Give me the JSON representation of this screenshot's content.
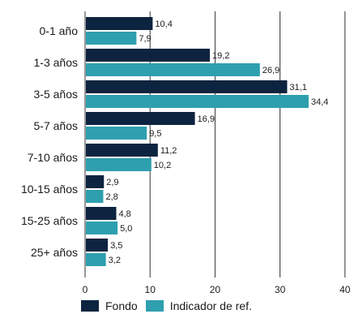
{
  "chart_data": {
    "type": "bar",
    "orientation": "horizontal",
    "categories": [
      "0-1 año",
      "1-3 años",
      "3-5 años",
      "5-7 años",
      "7-10 años",
      "10-15 años",
      "15-25 años",
      "25+ años"
    ],
    "series": [
      {
        "name": "Fondo",
        "color": "#0d2440",
        "values": [
          10.4,
          19.2,
          31.1,
          16.9,
          11.2,
          2.9,
          4.8,
          3.5
        ],
        "labels": [
          "10,4",
          "19,2",
          "31,1",
          "16,9",
          "11,2",
          "2,9",
          "4,8",
          "3,5"
        ]
      },
      {
        "name": "Indicador de ref.",
        "color": "#2e9fae",
        "values": [
          7.9,
          26.9,
          34.4,
          9.5,
          10.2,
          2.8,
          5.0,
          3.2
        ],
        "labels": [
          "7,9",
          "26,9",
          "34,4",
          "9,5",
          "10,2",
          "2,8",
          "5,0",
          "3,2"
        ]
      }
    ],
    "xlim": [
      0,
      40
    ],
    "xticks": [
      0,
      10,
      20,
      30,
      40
    ],
    "grid": true,
    "legend_position": "bottom"
  },
  "legend": {
    "fondo": "Fondo",
    "indicador": "Indicador de ref."
  },
  "colors": {
    "fondo": "#0d2440",
    "indicador": "#2e9fae",
    "grid": "#333333"
  }
}
